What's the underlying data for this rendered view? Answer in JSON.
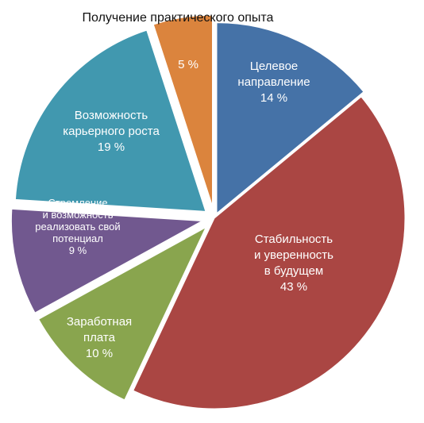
{
  "chart_data": {
    "type": "pie",
    "legend": "none",
    "slices": [
      {
        "label_lines": [
          "Целевое",
          "направление",
          "14 %"
        ],
        "value": 14,
        "color": "#4572A7"
      },
      {
        "label_lines": [
          "Стабильность",
          "и уверенность",
          "в будущем",
          "43 %"
        ],
        "value": 43,
        "color": "#AA4643"
      },
      {
        "label_lines": [
          "Заработная",
          "плата",
          "10 %"
        ],
        "value": 10,
        "color": "#89A54E"
      },
      {
        "label_lines": [
          "Стремление",
          "и возможность",
          "реализовать свой",
          "потенциал",
          "9 %"
        ],
        "value": 9,
        "color": "#71588F"
      },
      {
        "label_lines": [
          "Возможность",
          "карьерного роста",
          "19 %"
        ],
        "value": 19,
        "color": "#4198AF"
      },
      {
        "label_lines": [
          "Получение практического опыта"
        ],
        "value": 5,
        "value_label": "5 %",
        "color": "#DB843D"
      }
    ]
  }
}
